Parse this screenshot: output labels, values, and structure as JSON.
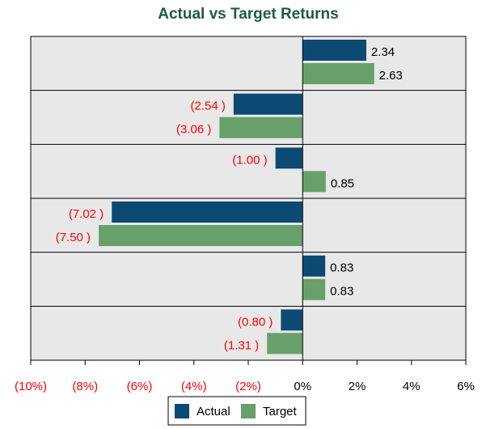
{
  "chart_data": {
    "type": "bar",
    "orientation": "horizontal",
    "title": "Actual vs Target Returns",
    "categories": [
      null,
      null,
      null,
      null,
      null,
      null
    ],
    "series": [
      {
        "name": "Actual",
        "color": "#0d4a73",
        "values": [
          2.34,
          -2.54,
          -1.0,
          -7.02,
          0.83,
          -0.8
        ],
        "value_labels": [
          "2.34",
          "(2.54 )",
          "(1.00 )",
          "(7.02 )",
          "0.83",
          "(0.80 )"
        ]
      },
      {
        "name": "Target",
        "color": "#67a06b",
        "values": [
          2.63,
          -3.06,
          0.85,
          -7.5,
          0.83,
          -1.31
        ],
        "value_labels": [
          "2.63",
          "(3.06 )",
          "0.85",
          "(7.50 )",
          "0.83",
          "(1.31 )"
        ]
      }
    ],
    "xlim": [
      -10,
      6
    ],
    "xticks": [
      {
        "value": -10,
        "label": "(10%)"
      },
      {
        "value": -8,
        "label": "(8%)"
      },
      {
        "value": -6,
        "label": "(6%)"
      },
      {
        "value": -4,
        "label": "(4%)"
      },
      {
        "value": -2,
        "label": "(2%)"
      },
      {
        "value": 0,
        "label": "0%"
      },
      {
        "value": 2,
        "label": "2%"
      },
      {
        "value": 4,
        "label": "4%"
      },
      {
        "value": 6,
        "label": "6%"
      }
    ],
    "negative_color": "#ff0000",
    "grid": true,
    "legend": "bottom"
  }
}
